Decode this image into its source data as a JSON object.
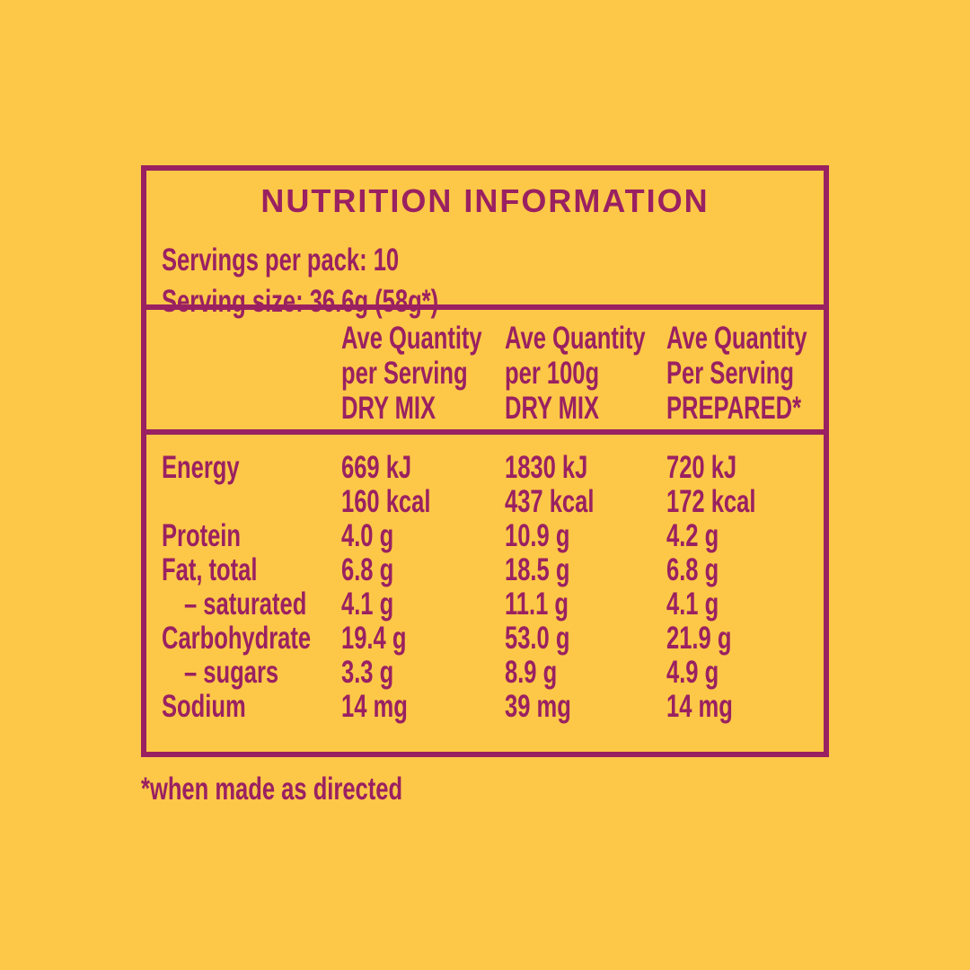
{
  "theme": {
    "background_color": "#FDC848",
    "text_and_border_color": "#9A2161"
  },
  "panel": {
    "title": "NUTRITION INFORMATION",
    "servings_per_pack": "Servings per pack: 10",
    "serving_size": "Serving size: 36.6g (58g*)",
    "footnote": "*when made as directed"
  },
  "table": {
    "columns": [
      {
        "lines": [
          "Ave Quantity",
          "per Serving",
          "DRY MIX"
        ]
      },
      {
        "lines": [
          "Ave Quantity",
          "per 100g",
          "DRY MIX"
        ]
      },
      {
        "lines": [
          "Ave Quantity",
          "Per Serving",
          "PREPARED*"
        ]
      }
    ],
    "rows": [
      {
        "label": "Energy",
        "values": [
          "669 kJ",
          "1830 kJ",
          "720 kJ"
        ]
      },
      {
        "label": "",
        "values": [
          "160 kcal",
          "437 kcal",
          "172 kcal"
        ]
      },
      {
        "label": "Protein",
        "values": [
          "4.0 g",
          "10.9 g",
          "4.2 g"
        ]
      },
      {
        "label": "Fat, total",
        "values": [
          "6.8 g",
          "18.5 g",
          "6.8 g"
        ]
      },
      {
        "label": "– saturated",
        "values": [
          "4.1 g",
          "11.1 g",
          "4.1 g"
        ]
      },
      {
        "label": "Carbohydrate",
        "values": [
          "19.4 g",
          "53.0 g",
          "21.9 g"
        ]
      },
      {
        "label": "– sugars",
        "values": [
          "3.3 g",
          "8.9 g",
          "4.9 g"
        ]
      },
      {
        "label": "Sodium",
        "values": [
          "14 mg",
          "39 mg",
          "14 mg"
        ]
      }
    ]
  }
}
